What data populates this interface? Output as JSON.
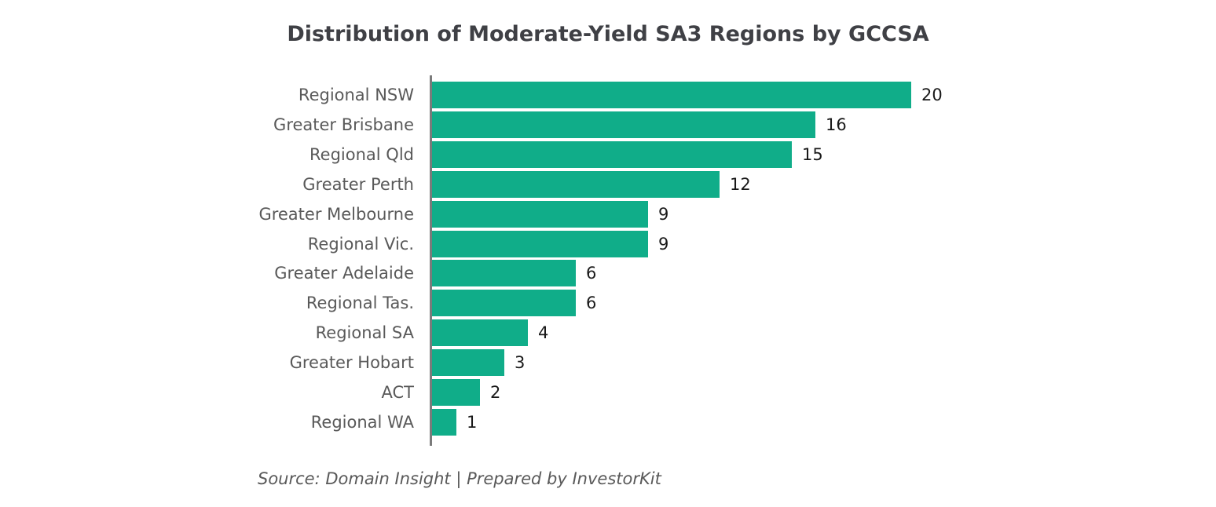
{
  "chart_data": {
    "type": "bar",
    "orientation": "horizontal",
    "title": "Distribution of Moderate-Yield SA3 Regions by GCCSA",
    "categories": [
      "Regional NSW",
      "Greater Brisbane",
      "Regional Qld",
      "Greater Perth",
      "Greater Melbourne",
      "Regional Vic.",
      "Greater Adelaide",
      "Regional Tas.",
      "Regional SA",
      "Greater Hobart",
      "ACT",
      "Regional WA"
    ],
    "values": [
      20,
      16,
      15,
      12,
      9,
      9,
      6,
      6,
      4,
      3,
      2,
      1
    ],
    "xlim": [
      0,
      20
    ],
    "xlabel": "",
    "ylabel": "",
    "grid": false,
    "legend": null,
    "data_labels": true,
    "colors": {
      "bar": "#10ad89",
      "title": "#3f4045",
      "category_label": "#595959",
      "value_label": "#191919",
      "axis_line": "#7b7b7b",
      "background": "#ffffff"
    },
    "footnote": "Source: Domain Insight | Prepared by InvestorKit"
  }
}
